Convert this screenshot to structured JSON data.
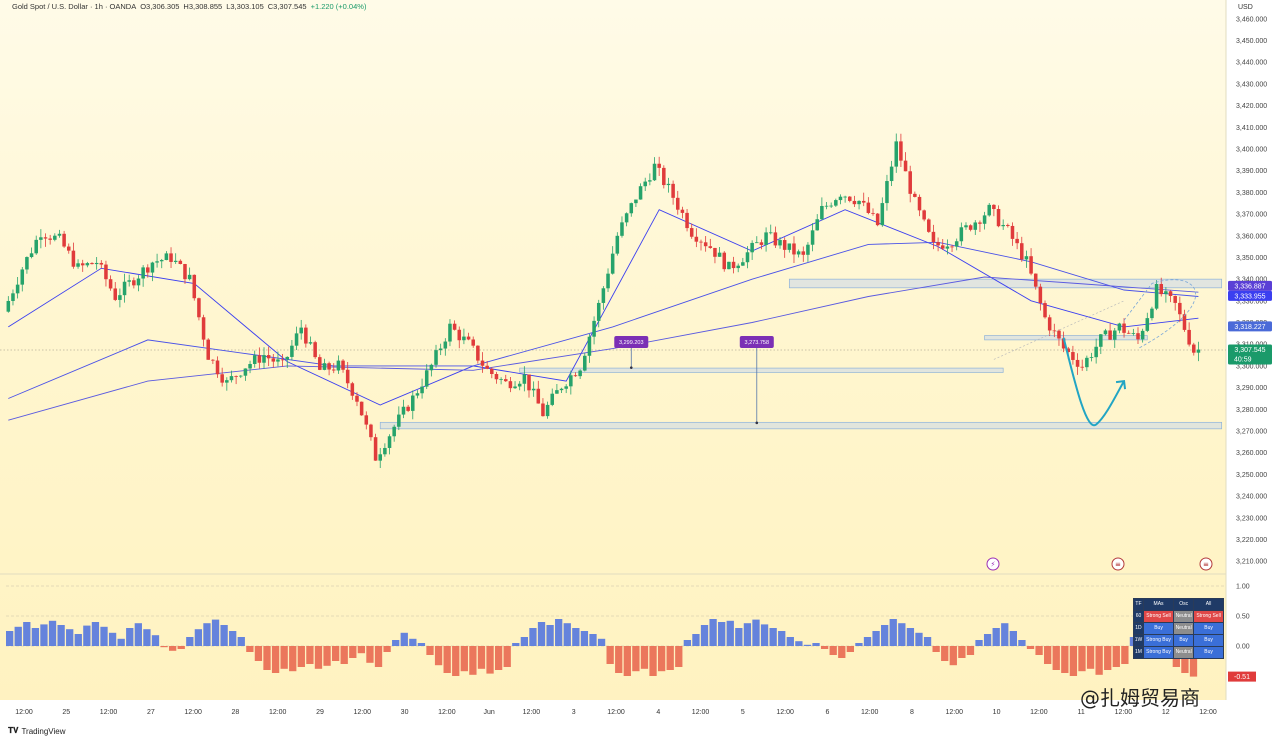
{
  "header": {
    "symbol": "Gold Spot / U.S. Dollar · 1h · OANDA",
    "open": "O3,306.305",
    "high": "H3,308.855",
    "low": "L3,303.105",
    "close": "C3,307.545",
    "change": "+1.220 (+0.04%)"
  },
  "currency": "USD",
  "chart_data": {
    "type": "candlestick",
    "symbol": "XAUUSD",
    "timeframe": "1h",
    "y_axis": {
      "min": 3205,
      "max": 3465,
      "ticks": [
        3210,
        3220,
        3230,
        3240,
        3250,
        3260,
        3270,
        3280,
        3290,
        3300,
        3310,
        3320,
        3330,
        3340,
        3350,
        3360,
        3370,
        3380,
        3390,
        3400,
        3410,
        3420,
        3430,
        3440,
        3450,
        3460
      ],
      "tick_format": "0,000.000"
    },
    "x_axis": {
      "labels": [
        "12:00",
        "25",
        "12:00",
        "27",
        "12:00",
        "28",
        "12:00",
        "29",
        "12:00",
        "30",
        "12:00",
        "Jun",
        "12:00",
        "3",
        "12:00",
        "4",
        "12:00",
        "5",
        "12:00",
        "6",
        "12:00",
        "8",
        "12:00",
        "10",
        "12:00",
        "11",
        "12:00",
        "12",
        "12:00"
      ]
    },
    "price_path": [
      [
        0,
        3325
      ],
      [
        4,
        3345
      ],
      [
        8,
        3362
      ],
      [
        12,
        3358
      ],
      [
        16,
        3345
      ],
      [
        20,
        3348
      ],
      [
        24,
        3332
      ],
      [
        28,
        3340
      ],
      [
        32,
        3348
      ],
      [
        36,
        3350
      ],
      [
        40,
        3340
      ],
      [
        44,
        3305
      ],
      [
        48,
        3292
      ],
      [
        52,
        3300
      ],
      [
        56,
        3305
      ],
      [
        60,
        3300
      ],
      [
        64,
        3318
      ],
      [
        68,
        3298
      ],
      [
        72,
        3300
      ],
      [
        76,
        3285
      ],
      [
        80,
        3258
      ],
      [
        84,
        3272
      ],
      [
        88,
        3285
      ],
      [
        92,
        3300
      ],
      [
        96,
        3318
      ],
      [
        100,
        3310
      ],
      [
        104,
        3298
      ],
      [
        108,
        3292
      ],
      [
        112,
        3295
      ],
      [
        116,
        3278
      ],
      [
        120,
        3291
      ],
      [
        124,
        3300
      ],
      [
        128,
        3328
      ],
      [
        132,
        3360
      ],
      [
        136,
        3378
      ],
      [
        140,
        3392
      ],
      [
        144,
        3378
      ],
      [
        148,
        3362
      ],
      [
        152,
        3355
      ],
      [
        156,
        3345
      ],
      [
        160,
        3352
      ],
      [
        164,
        3360
      ],
      [
        168,
        3355
      ],
      [
        172,
        3350
      ],
      [
        176,
        3372
      ],
      [
        180,
        3380
      ],
      [
        184,
        3376
      ],
      [
        188,
        3365
      ],
      [
        192,
        3402
      ],
      [
        196,
        3375
      ],
      [
        200,
        3355
      ],
      [
        204,
        3358
      ],
      [
        208,
        3365
      ],
      [
        212,
        3372
      ],
      [
        216,
        3362
      ],
      [
        220,
        3348
      ],
      [
        224,
        3322
      ],
      [
        228,
        3308
      ],
      [
        232,
        3300
      ],
      [
        236,
        3312
      ],
      [
        240,
        3318
      ],
      [
        244,
        3312
      ],
      [
        248,
        3335
      ],
      [
        252,
        3328
      ],
      [
        256,
        3307
      ]
    ],
    "moving_averages": [
      {
        "name": "MA fast",
        "color": "#3b3ff0",
        "points": [
          [
            0,
            3318
          ],
          [
            20,
            3345
          ],
          [
            40,
            3338
          ],
          [
            60,
            3302
          ],
          [
            80,
            3282
          ],
          [
            100,
            3300
          ],
          [
            120,
            3293
          ],
          [
            140,
            3372
          ],
          [
            160,
            3353
          ],
          [
            180,
            3372
          ],
          [
            200,
            3355
          ],
          [
            220,
            3330
          ],
          [
            240,
            3318
          ],
          [
            256,
            3322
          ]
        ]
      },
      {
        "name": "MA mid",
        "color": "#4a52e8",
        "points": [
          [
            0,
            3285
          ],
          [
            30,
            3312
          ],
          [
            50,
            3306
          ],
          [
            70,
            3300
          ],
          [
            100,
            3300
          ],
          [
            130,
            3318
          ],
          [
            160,
            3340
          ],
          [
            185,
            3356
          ],
          [
            200,
            3357
          ],
          [
            220,
            3348
          ],
          [
            240,
            3335
          ],
          [
            256,
            3332
          ]
        ]
      },
      {
        "name": "MA slow",
        "color": "#5a5ae0",
        "points": [
          [
            0,
            3275
          ],
          [
            30,
            3293
          ],
          [
            60,
            3300
          ],
          [
            100,
            3298
          ],
          [
            130,
            3308
          ],
          [
            160,
            3320
          ],
          [
            185,
            3332
          ],
          [
            210,
            3341
          ],
          [
            230,
            3338
          ],
          [
            256,
            3334
          ]
        ]
      }
    ],
    "zones": [
      {
        "from_bar": 168,
        "to_bar": 261,
        "low": 3336,
        "high": 3340,
        "label": ""
      },
      {
        "from_bar": 210,
        "to_bar": 245,
        "low": 3312,
        "high": 3314,
        "label": ""
      },
      {
        "from_bar": 110,
        "to_bar": 214,
        "low": 3297,
        "high": 3299,
        "label": ""
      },
      {
        "from_bar": 80,
        "to_bar": 261,
        "low": 3271,
        "high": 3274,
        "label": ""
      }
    ],
    "callouts": [
      {
        "bar": 134,
        "price": 3299.203,
        "label": "3,299.203",
        "color": "#7b2fb5"
      },
      {
        "bar": 161,
        "price": 3273.758,
        "label": "3,273.758",
        "color": "#7b2fb5"
      }
    ],
    "price_tags": [
      {
        "price": 3336.887,
        "label": "3,336.887",
        "color": "#5a3fd6"
      },
      {
        "price": 3333.955,
        "label": "3,333.955",
        "color": "#3b3ff0"
      },
      {
        "price": 3318.227,
        "label": "3,318.227",
        "color": "#4a6ad8"
      },
      {
        "price": 3307.545,
        "label": "3,307.545",
        "color": "#1a9a6a",
        "countdown": "40:59"
      }
    ],
    "forecast": {
      "points": [
        [
          227,
          3313
        ],
        [
          234,
          3273
        ],
        [
          240,
          3293
        ]
      ],
      "color": "#22a5c4"
    },
    "indicator": {
      "name": "Technical rating histogram",
      "ticks": [
        1.0,
        0.5,
        0.0,
        -0.51
      ],
      "highlight": "-0.51",
      "values": [
        0.25,
        0.32,
        0.4,
        0.3,
        0.36,
        0.42,
        0.35,
        0.28,
        0.2,
        0.34,
        0.4,
        0.32,
        0.22,
        0.12,
        0.3,
        0.38,
        0.28,
        0.18,
        -0.02,
        -0.08,
        -0.05,
        0.15,
        0.28,
        0.38,
        0.44,
        0.35,
        0.25,
        0.15,
        -0.1,
        -0.25,
        -0.4,
        -0.45,
        -0.38,
        -0.42,
        -0.35,
        -0.3,
        -0.38,
        -0.33,
        -0.25,
        -0.3,
        -0.2,
        -0.12,
        -0.28,
        -0.35,
        -0.1,
        0.1,
        0.22,
        0.12,
        0.05,
        -0.15,
        -0.32,
        -0.45,
        -0.5,
        -0.42,
        -0.48,
        -0.38,
        -0.46,
        -0.4,
        -0.35,
        0.05,
        0.15,
        0.3,
        0.4,
        0.35,
        0.45,
        0.38,
        0.3,
        0.25,
        0.2,
        0.12,
        -0.3,
        -0.45,
        -0.5,
        -0.42,
        -0.38,
        -0.5,
        -0.42,
        -0.4,
        -0.35,
        0.1,
        0.2,
        0.35,
        0.45,
        0.4,
        0.42,
        0.3,
        0.38,
        0.44,
        0.36,
        0.3,
        0.25,
        0.15,
        0.08,
        0.02,
        0.05,
        -0.05,
        -0.15,
        -0.2,
        -0.1,
        0.05,
        0.15,
        0.25,
        0.35,
        0.45,
        0.38,
        0.3,
        0.22,
        0.15,
        -0.1,
        -0.25,
        -0.32,
        -0.2,
        -0.15,
        0.1,
        0.2,
        0.3,
        0.38,
        0.25,
        0.1,
        -0.05,
        -0.15,
        -0.3,
        -0.4,
        -0.45,
        -0.5,
        -0.42,
        -0.38,
        -0.48,
        -0.4,
        -0.35,
        -0.3,
        0.15,
        0.25,
        0.15,
        -0.1,
        -0.2,
        -0.35,
        -0.45,
        -0.51
      ]
    }
  },
  "rating_table": {
    "headers": [
      "TF",
      "MAs",
      "Osc",
      "All"
    ],
    "rows": [
      {
        "tf": "60",
        "mas": "Strong Sell",
        "osc": "Neutral",
        "all": "Strong Sell",
        "c": [
          "r",
          "n",
          "r"
        ]
      },
      {
        "tf": "1D",
        "mas": "Buy",
        "osc": "Neutral",
        "all": "Buy",
        "c": [
          "b",
          "n",
          "b"
        ]
      },
      {
        "tf": "1W",
        "mas": "Strong Buy",
        "osc": "Buy",
        "all": "Buy",
        "c": [
          "b",
          "b",
          "b"
        ]
      },
      {
        "tf": "1M",
        "mas": "Strong Buy",
        "osc": "Neutral",
        "all": "Buy",
        "c": [
          "b",
          "n",
          "b"
        ]
      }
    ]
  },
  "footer": {
    "brand": "TradingView"
  },
  "watermark": "@扎姆贸易商"
}
